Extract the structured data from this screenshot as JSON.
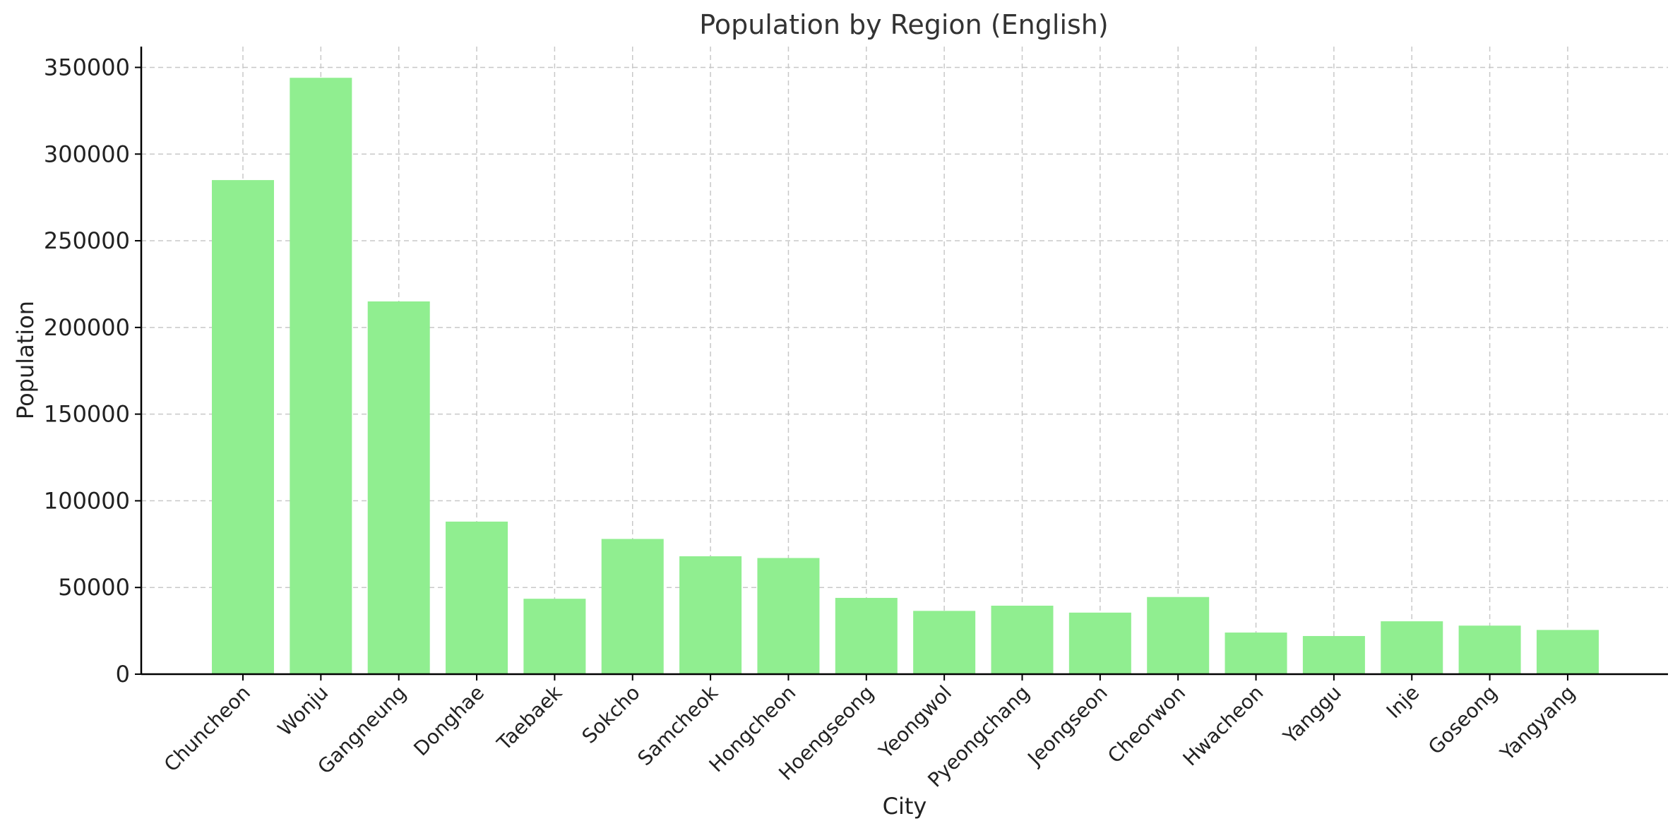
{
  "chart_data": {
    "type": "bar",
    "title": "Population by Region (English)",
    "xlabel": "City",
    "ylabel": "Population",
    "categories": [
      "Chuncheon",
      "Wonju",
      "Gangneung",
      "Donghae",
      "Taebaek",
      "Sokcho",
      "Samcheok",
      "Hongcheon",
      "Hoengseong",
      "Yeongwol",
      "Pyeongchang",
      "Jeongseon",
      "Cheorwon",
      "Hwacheon",
      "Yanggu",
      "Inje",
      "Goseong",
      "Yangyang"
    ],
    "values": [
      285000,
      344000,
      215000,
      88000,
      43500,
      78000,
      68000,
      67000,
      44000,
      36500,
      39500,
      35500,
      44500,
      24000,
      22000,
      30500,
      28000,
      25500
    ],
    "yticks": [
      "0",
      "50000",
      "100000",
      "150000",
      "200000",
      "250000",
      "300000",
      "350000"
    ],
    "ylim": [
      0,
      362000
    ],
    "bar_color": "#90ee90",
    "grid": true,
    "legend": false
  }
}
